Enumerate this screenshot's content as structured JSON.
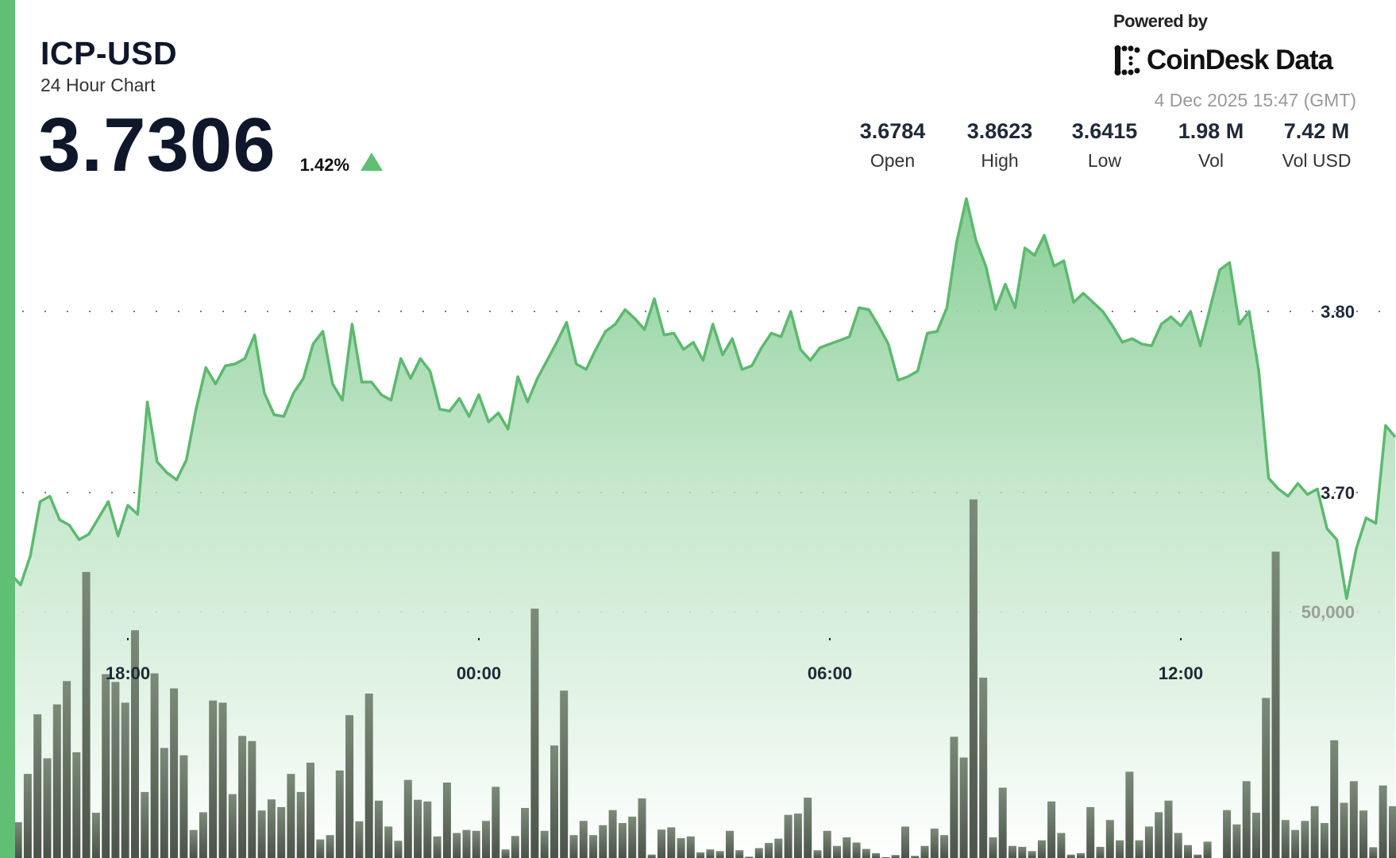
{
  "header": {
    "symbol": "ICP-USD",
    "subtitle": "24 Hour Chart",
    "price": "3.7306",
    "change_pct": "1.42%",
    "change_direction": "up",
    "change_icon": "triangle-up-icon"
  },
  "branding": {
    "powered_by": "Powered by",
    "logo_text": "CoinDesk Data",
    "timestamp": "4 Dec 2025 15:47 (GMT)"
  },
  "stats": [
    {
      "value": "3.6784",
      "label": "Open"
    },
    {
      "value": "3.8623",
      "label": "High"
    },
    {
      "value": "3.6415",
      "label": "Low"
    },
    {
      "value": "1.98 M",
      "label": "Vol"
    },
    {
      "value": "7.42 M",
      "label": "Vol USD"
    }
  ],
  "colors": {
    "accent": "#5fbf73",
    "line": "#5cb96f",
    "volume_bar": "#5a6658",
    "text": "#0f172a"
  },
  "chart_data": {
    "type": "area",
    "grid": "dotted-horizontal",
    "x_ticks": [
      "18:00",
      "00:00",
      "06:00",
      "12:00"
    ],
    "price_ticks": [
      "3.80",
      "3.70"
    ],
    "price_tick_values": [
      3.8,
      3.7
    ],
    "volume_ticks": [
      "50,000"
    ],
    "volume_tick_values": [
      50000
    ],
    "x": [
      "15:50",
      "16:00",
      "16:10",
      "16:20",
      "16:30",
      "16:40",
      "16:50",
      "17:00",
      "17:10",
      "17:20",
      "17:30",
      "17:40",
      "17:50",
      "18:00",
      "18:10",
      "18:20",
      "18:30",
      "18:40",
      "18:50",
      "19:00",
      "19:10",
      "19:20",
      "19:30",
      "19:40",
      "19:50",
      "20:00",
      "20:10",
      "20:20",
      "20:30",
      "20:40",
      "20:50",
      "21:00",
      "21:10",
      "21:20",
      "21:30",
      "21:40",
      "21:50",
      "22:00",
      "22:10",
      "22:20",
      "22:30",
      "22:40",
      "22:50",
      "23:00",
      "23:10",
      "23:20",
      "23:30",
      "23:40",
      "23:50",
      "00:00",
      "00:10",
      "00:20",
      "00:30",
      "00:40",
      "00:50",
      "01:00",
      "01:10",
      "01:20",
      "01:30",
      "01:40",
      "01:50",
      "02:00",
      "02:10",
      "02:20",
      "02:30",
      "02:40",
      "02:50",
      "03:00",
      "03:10",
      "03:20",
      "03:30",
      "03:40",
      "03:50",
      "04:00",
      "04:10",
      "04:20",
      "04:30",
      "04:40",
      "04:50",
      "05:00",
      "05:10",
      "05:20",
      "05:30",
      "05:40",
      "05:50",
      "06:00",
      "06:10",
      "06:20",
      "06:30",
      "06:40",
      "06:50",
      "07:00",
      "07:10",
      "07:20",
      "07:30",
      "07:40",
      "07:50",
      "08:00",
      "08:10",
      "08:20",
      "08:30",
      "08:40",
      "08:50",
      "09:00",
      "09:10",
      "09:20",
      "09:30",
      "09:40",
      "09:50",
      "10:00",
      "10:10",
      "10:20",
      "10:30",
      "10:40",
      "10:50",
      "11:00",
      "11:10",
      "11:20",
      "11:30",
      "11:40",
      "11:50",
      "12:00",
      "12:10",
      "12:20",
      "12:30",
      "12:40",
      "12:50",
      "13:00",
      "13:10",
      "13:20",
      "13:30",
      "13:40",
      "13:50",
      "14:00",
      "14:10",
      "14:20",
      "14:30",
      "14:40",
      "14:50",
      "15:00",
      "15:10",
      "15:20",
      "15:30",
      "15:40"
    ],
    "price": [
      3.66,
      3.655,
      3.649,
      3.665,
      3.695,
      3.698,
      3.685,
      3.682,
      3.674,
      3.677,
      3.686,
      3.695,
      3.676,
      3.693,
      3.688,
      3.75,
      3.717,
      3.711,
      3.707,
      3.718,
      3.746,
      3.769,
      3.76,
      3.77,
      3.771,
      3.774,
      3.787,
      3.755,
      3.743,
      3.742,
      3.755,
      3.763,
      3.782,
      3.789,
      3.76,
      3.751,
      3.793,
      3.761,
      3.761,
      3.754,
      3.751,
      3.774,
      3.763,
      3.774,
      3.767,
      3.746,
      3.745,
      3.752,
      3.742,
      3.754,
      3.739,
      3.744,
      3.735,
      3.764,
      3.75,
      3.763,
      3.773,
      3.783,
      3.794,
      3.771,
      3.768,
      3.779,
      3.789,
      3.793,
      3.801,
      3.796,
      3.79,
      3.807,
      3.787,
      3.788,
      3.779,
      3.783,
      3.773,
      3.793,
      3.776,
      3.785,
      3.768,
      3.77,
      3.78,
      3.788,
      3.786,
      3.8,
      3.779,
      3.773,
      3.78,
      3.782,
      3.784,
      3.786,
      3.802,
      3.801,
      3.792,
      3.782,
      3.762,
      3.764,
      3.767,
      3.788,
      3.789,
      3.802,
      3.838,
      3.8623,
      3.839,
      3.825,
      3.801,
      3.815,
      3.802,
      3.835,
      3.831,
      3.842,
      3.825,
      3.828,
      3.805,
      3.81,
      3.805,
      3.8,
      3.792,
      3.783,
      3.785,
      3.782,
      3.781,
      3.793,
      3.797,
      3.792,
      3.8,
      3.781,
      3.802,
      3.823,
      3.827,
      3.793,
      3.8,
      3.767,
      3.708,
      3.702,
      3.698,
      3.705,
      3.699,
      3.702,
      3.68,
      3.674,
      3.6415,
      3.669,
      3.686,
      3.683,
      3.737,
      3.7306
    ],
    "volume": [
      8000,
      7270,
      17080,
      29170,
      20240,
      31190,
      35920,
      21460,
      58080,
      9200,
      37320,
      35740,
      31540,
      46250,
      13400,
      37490,
      22340,
      34430,
      20850,
      5690,
      9290,
      31970,
      31540,
      12960,
      24790,
      23740,
      9640,
      11910,
      10340,
      17080,
      13400,
      19360,
      3770,
      4640,
      17780,
      29000,
      7450,
      33380,
      11650,
      6390,
      3500,
      15860,
      11830,
      11480,
      4380,
      15330,
      5080,
      5690,
      5520,
      7530,
      14450,
      1750,
      4470,
      10160,
      50630,
      5520,
      22860,
      33990,
      4640,
      7530,
      4640,
      6660,
      9720,
      7100,
      8410,
      12090,
      700,
      5780,
      6220,
      4030,
      4380,
      1140,
      1750,
      1400,
      5520,
      1580,
      260,
      2010,
      3070,
      3940,
      8760,
      9020,
      12260,
      1580,
      5520,
      2450,
      4200,
      3150,
      1840,
      960,
      180,
      610,
      6390,
      440,
      2450,
      5960,
      4640,
      24620,
      20410,
      72800,
      36620,
      4200,
      14280,
      2450,
      2280,
      1400,
      3590,
      11480,
      5080,
      700,
      960,
      10340,
      2280,
      7710,
      3590,
      17520,
      3590,
      6390,
      9290,
      11650,
      5080,
      2630,
      700,
      3330,
      0,
      9720,
      6830,
      15590,
      9200,
      32500,
      62200,
      7710,
      5690,
      7530,
      10510,
      7100,
      23910,
      11210,
      15590,
      9640,
      2190,
      14720,
      10510,
      7880
    ]
  }
}
